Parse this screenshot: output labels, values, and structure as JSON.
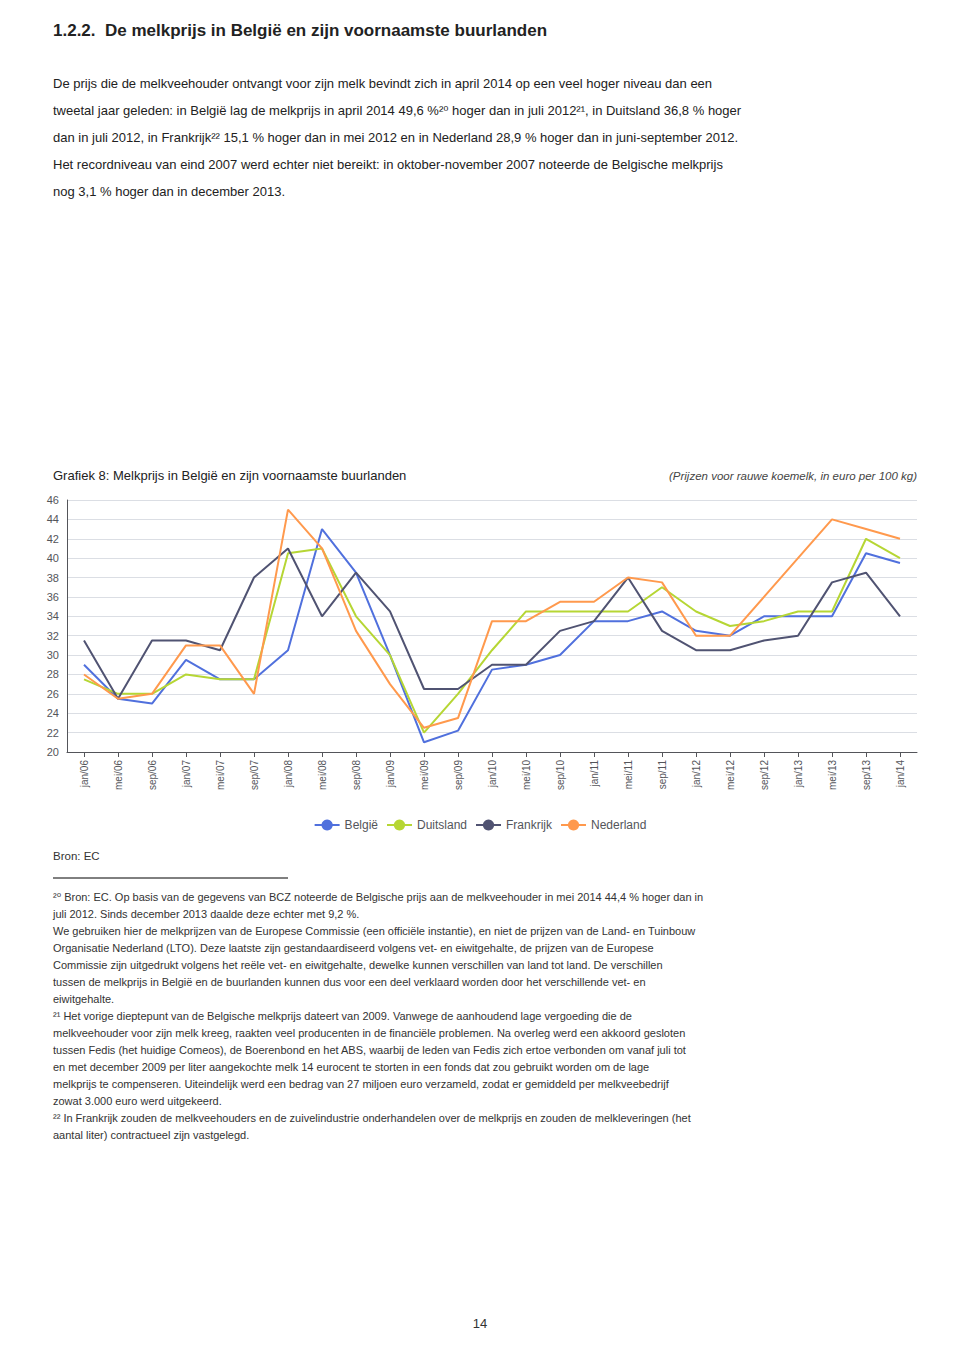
{
  "chart_data": {
    "type": "line",
    "title": "Grafiek 8: Melkprijs in België en zijn voornaamste buurlanden",
    "subtitle": "(Prijzen voor rauwe koemelk, in euro per 100 kg)",
    "annotations": [
      "1.2.2.  De melkprijs in België en zijn voornaamste buurlanden",
      "De prijs die de melkveehouder ontvangt voor zijn melk bevindt zich in april 2014 op een veel hoger niveau dan een",
      "tweetal jaar geleden: in België lag de melkprijs in april 2014 49,6 %²⁰ hoger dan in juli 2012²¹, in Duitsland 36,8 % hoger",
      "dan in juli 2012, in Frankrijk²² 15,1 % hoger dan in mei 2012 en in Nederland 28,9 % hoger dan in juni-september 2012.",
      "Het recordniveau van eind 2007 werd echter niet bereikt: in oktober-november 2007 noteerde de Belgische melkprijs",
      "nog 3,1 % hoger dan in december 2013.",
      "Bron: EC",
      "²⁰ Bron: EC. Op basis van de gegevens van BCZ noteerde de Belgische prijs aan de melkveehouder in mei 2014 44,4 % hoger dan in",
      "juli 2012. Sinds december 2013 daalde deze echter met 9,2 %.",
      "We gebruiken hier de melkprijzen van de Europese Commissie (een officiële instantie), en niet de prijzen van de Land- en Tuinbouw",
      "Organisatie Nederland (LTO). Deze laatste zijn gestandaardiseerd volgens vet- en eiwitgehalte, de prijzen van de Europese",
      "Commissie zijn uitgedrukt volgens het reële vet- en eiwitgehalte, dewelke kunnen verschillen van land tot land. De verschillen",
      "tussen de melkprijs in België en de buurlanden kunnen dus voor een deel verklaard worden door het verschillende vet- en",
      "eiwitgehalte.",
      "²¹ Het vorige dieptepunt van de Belgische melkprijs dateert van 2009. Vanwege de aanhoudend lage vergoeding die de",
      "melkveehouder voor zijn melk kreeg, raakten veel producenten in de financiële problemen. Na overleg werd een akkoord gesloten",
      "tussen Fedis (het huidige Comeos), de Boerenbond en het ABS, waarbij de leden van Fedis zich ertoe verbonden om vanaf juli tot",
      "en met december 2009 per liter aangekochte melk 14 eurocent te storten in een fonds dat zou gebruikt worden om de lage",
      "melkprijs te compenseren. Uiteindelijk werd een bedrag van 27 miljoen euro verzameld, zodat er gemiddeld per melkveebedrijf",
      "zowat 3.000 euro werd uitgekeerd.",
      "²² In Frankrijk zouden de melkveehouders en de zuivelindustrie onderhandelen over de melkprijs en zouden de melkleveringen (het",
      "aantal liter) contractueel zijn vastgelegd.",
      "14"
    ],
    "categories": [
      "jan/06",
      "mei/06",
      "sep/06",
      "jan/07",
      "mei/07",
      "sep/07",
      "jan/08",
      "mei/08",
      "sep/08",
      "jan/09",
      "mei/09",
      "sep/09",
      "jan/10",
      "mei/10",
      "sep/10",
      "jan/11",
      "mei/11",
      "sep/11",
      "jan/12",
      "mei/12",
      "sep/12",
      "jan/13",
      "mei/13",
      "sep/13",
      "jan/14"
    ],
    "series": [
      {
        "name": "België",
        "values": [
          29.0,
          25.5,
          25.0,
          29.5,
          27.5,
          27.5,
          30.5,
          43.0,
          38.5,
          30.0,
          21.0,
          22.2,
          28.5,
          29.0,
          30.0,
          33.5,
          33.5,
          34.5,
          32.5,
          32.0,
          34.0,
          34.0,
          34.0,
          40.5,
          39.5
        ]
      },
      {
        "name": "Duitsland",
        "values": [
          27.5,
          26.0,
          26.0,
          28.0,
          27.5,
          27.5,
          40.5,
          41.0,
          34.0,
          30.0,
          22.0,
          26.0,
          30.5,
          34.5,
          34.5,
          34.5,
          34.5,
          37.0,
          34.5,
          33.0,
          33.5,
          34.5,
          34.5,
          42.0,
          40.0
        ]
      },
      {
        "name": "Frankrijk",
        "values": [
          31.5,
          25.5,
          31.5,
          31.5,
          30.5,
          38.0,
          41.0,
          34.0,
          38.5,
          34.5,
          26.5,
          26.5,
          29.0,
          29.0,
          32.5,
          33.5,
          38.0,
          32.5,
          30.5,
          30.5,
          31.5,
          32.0,
          37.5,
          38.5,
          34.0
        ]
      },
      {
        "name": "Nederland",
        "values": [
          28.0,
          25.5,
          26.0,
          31.0,
          31.0,
          26.0,
          45.0,
          41.0,
          32.5,
          27.0,
          22.5,
          23.5,
          33.5,
          33.5,
          35.5,
          35.5,
          38.0,
          37.5,
          32.0,
          32.0,
          36.0,
          40.0,
          44.0,
          43.0,
          42.0
        ]
      }
    ],
    "ylim": [
      20,
      46
    ],
    "yticks": [
      20,
      22,
      24,
      26,
      28,
      30,
      32,
      34,
      36,
      38,
      40,
      42,
      44,
      46
    ],
    "grid": true,
    "legend": "bottom"
  }
}
